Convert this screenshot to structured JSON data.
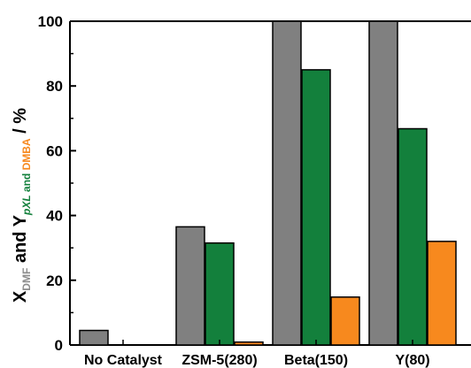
{
  "chart_data": {
    "type": "bar",
    "categories": [
      "No Catalyst",
      "ZSM-5(280)",
      "Beta(150)",
      "Y(80)"
    ],
    "series": [
      {
        "name": "DMF",
        "color": "#808080",
        "values": [
          4.5,
          36.5,
          100,
          100
        ]
      },
      {
        "name": "pXL",
        "color": "#13803c",
        "values": [
          0,
          31.5,
          85,
          66.8
        ]
      },
      {
        "name": "DMBA",
        "color": "#f7891e",
        "values": [
          0,
          0.9,
          14.8,
          32
        ]
      }
    ],
    "ylim": [
      0,
      100
    ],
    "yticks": [
      "0",
      "20",
      "40",
      "60",
      "80",
      "100"
    ],
    "ylabel": {
      "p1": "X",
      "s1": "DMF",
      "p2": " and Y",
      "s2": "pXL",
      "s3": " and ",
      "s4": "DMBA",
      "p3": " / %",
      "colors": {
        "grey": "#8c8c8c",
        "green": "#13803c",
        "orange": "#f7891e"
      }
    }
  }
}
